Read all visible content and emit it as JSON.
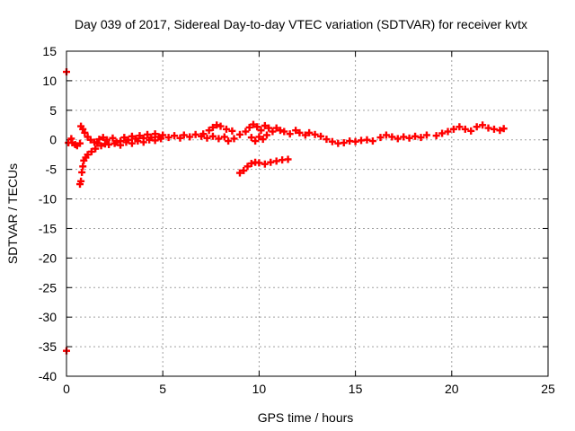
{
  "chart_data": {
    "type": "scatter",
    "title": "Day 039 of 2017, Sidereal Day-to-day VTEC variation (SDTVAR) for receiver kvtx",
    "xlabel": "GPS time / hours",
    "ylabel": "SDTVAR / TECUs",
    "xlim": [
      0,
      25
    ],
    "ylim": [
      -40,
      15
    ],
    "xticks": [
      0,
      5,
      10,
      15,
      20,
      25
    ],
    "yticks": [
      -40,
      -35,
      -30,
      -25,
      -20,
      -15,
      -10,
      -5,
      0,
      5,
      10,
      15
    ],
    "xtick_labels": [
      "0",
      "5",
      "10",
      "15",
      "20",
      "25"
    ],
    "ytick_labels": [
      "-40",
      "-35",
      "-30",
      "-25",
      "-20",
      "-15",
      "-10",
      "-5",
      "0",
      "5",
      "10",
      "15"
    ],
    "grid": true,
    "marker_color": "#ff0000",
    "series": [
      {
        "points": [
          [
            0.0,
            11.5
          ],
          [
            0.0,
            -35.7
          ],
          [
            0.1,
            -0.5
          ],
          [
            0.25,
            0.2
          ],
          [
            0.3,
            -0.5
          ],
          [
            0.45,
            -0.8
          ],
          [
            0.55,
            -1.0
          ],
          [
            0.7,
            -0.6
          ],
          [
            0.7,
            -7.5
          ],
          [
            0.75,
            -7.0
          ],
          [
            0.8,
            -5.5
          ],
          [
            0.85,
            -4.5
          ],
          [
            0.9,
            -3.5
          ],
          [
            1.0,
            -3.0
          ],
          [
            1.1,
            -2.5
          ],
          [
            1.3,
            -2.0
          ],
          [
            1.5,
            -1.5
          ],
          [
            1.8,
            -1.0
          ],
          [
            2.0,
            -0.7
          ],
          [
            0.75,
            2.3
          ],
          [
            0.85,
            1.8
          ],
          [
            0.95,
            1.2
          ],
          [
            1.1,
            0.5
          ],
          [
            1.25,
            0.0
          ],
          [
            1.45,
            -0.4
          ],
          [
            1.6,
            -0.6
          ],
          [
            1.7,
            0.1
          ],
          [
            1.9,
            0.4
          ],
          [
            2.1,
            0.0
          ],
          [
            2.4,
            0.3
          ],
          [
            2.6,
            -0.4
          ],
          [
            2.8,
            -0.2
          ],
          [
            3.0,
            0.4
          ],
          [
            3.2,
            0.0
          ],
          [
            3.4,
            0.6
          ],
          [
            3.6,
            0.2
          ],
          [
            3.8,
            0.7
          ],
          [
            4.0,
            0.3
          ],
          [
            4.2,
            0.9
          ],
          [
            4.4,
            0.4
          ],
          [
            4.6,
            1.0
          ],
          [
            4.8,
            0.5
          ],
          [
            2.2,
            -0.8
          ],
          [
            2.5,
            -0.6
          ],
          [
            2.8,
            -0.9
          ],
          [
            3.1,
            -0.4
          ],
          [
            3.4,
            -0.6
          ],
          [
            3.7,
            -0.2
          ],
          [
            4.0,
            -0.4
          ],
          [
            4.3,
            0.0
          ],
          [
            4.6,
            -0.1
          ],
          [
            4.9,
            0.2
          ],
          [
            5.0,
            0.8
          ],
          [
            5.3,
            0.4
          ],
          [
            5.6,
            0.7
          ],
          [
            5.9,
            0.3
          ],
          [
            6.1,
            0.8
          ],
          [
            6.4,
            0.5
          ],
          [
            6.7,
            0.9
          ],
          [
            7.0,
            0.6
          ],
          [
            7.3,
            0.3
          ],
          [
            7.6,
            0.6
          ],
          [
            7.9,
            0.2
          ],
          [
            8.2,
            0.5
          ],
          [
            7.1,
            1.0
          ],
          [
            7.4,
            1.6
          ],
          [
            7.6,
            2.1
          ],
          [
            7.8,
            2.5
          ],
          [
            8.0,
            2.3
          ],
          [
            8.3,
            1.8
          ],
          [
            8.6,
            1.5
          ],
          [
            8.4,
            -0.2
          ],
          [
            8.7,
            0.2
          ],
          [
            9.0,
            0.9
          ],
          [
            9.3,
            1.4
          ],
          [
            9.5,
            2.1
          ],
          [
            9.7,
            2.6
          ],
          [
            9.9,
            2.2
          ],
          [
            10.1,
            1.6
          ],
          [
            10.3,
            2.4
          ],
          [
            10.5,
            2.0
          ],
          [
            10.7,
            1.4
          ],
          [
            10.9,
            2.0
          ],
          [
            11.1,
            1.6
          ],
          [
            9.6,
            0.4
          ],
          [
            9.8,
            -0.2
          ],
          [
            10.0,
            0.5
          ],
          [
            10.2,
            0.1
          ],
          [
            10.4,
            0.8
          ],
          [
            11.3,
            1.4
          ],
          [
            11.6,
            1.0
          ],
          [
            11.9,
            1.6
          ],
          [
            12.1,
            1.2
          ],
          [
            12.4,
            0.8
          ],
          [
            12.6,
            1.2
          ],
          [
            12.9,
            0.9
          ],
          [
            13.2,
            0.6
          ],
          [
            13.5,
            0.1
          ],
          [
            13.8,
            -0.3
          ],
          [
            14.1,
            -0.6
          ],
          [
            14.4,
            -0.5
          ],
          [
            14.7,
            -0.2
          ],
          [
            15.0,
            -0.3
          ],
          [
            15.3,
            -0.1
          ],
          [
            15.6,
            0.0
          ],
          [
            15.9,
            -0.2
          ],
          [
            16.3,
            0.4
          ],
          [
            16.6,
            0.8
          ],
          [
            16.9,
            0.5
          ],
          [
            17.2,
            0.2
          ],
          [
            17.5,
            0.5
          ],
          [
            17.8,
            0.3
          ],
          [
            18.1,
            0.6
          ],
          [
            18.4,
            0.4
          ],
          [
            18.7,
            0.8
          ],
          [
            19.2,
            0.7
          ],
          [
            19.5,
            1.1
          ],
          [
            19.8,
            1.4
          ],
          [
            20.1,
            1.8
          ],
          [
            20.4,
            2.2
          ],
          [
            20.7,
            1.8
          ],
          [
            21.0,
            1.5
          ],
          [
            21.3,
            2.2
          ],
          [
            21.6,
            2.5
          ],
          [
            21.9,
            2.0
          ],
          [
            22.2,
            1.8
          ],
          [
            22.5,
            1.6
          ],
          [
            22.7,
            1.9
          ],
          [
            9.0,
            -5.6
          ],
          [
            9.2,
            -5.2
          ],
          [
            9.4,
            -4.5
          ],
          [
            9.6,
            -4.0
          ],
          [
            9.8,
            -3.8
          ],
          [
            10.0,
            -3.9
          ],
          [
            10.3,
            -4.1
          ],
          [
            10.6,
            -3.8
          ],
          [
            10.9,
            -3.6
          ],
          [
            11.2,
            -3.4
          ],
          [
            11.5,
            -3.3
          ]
        ]
      }
    ]
  }
}
